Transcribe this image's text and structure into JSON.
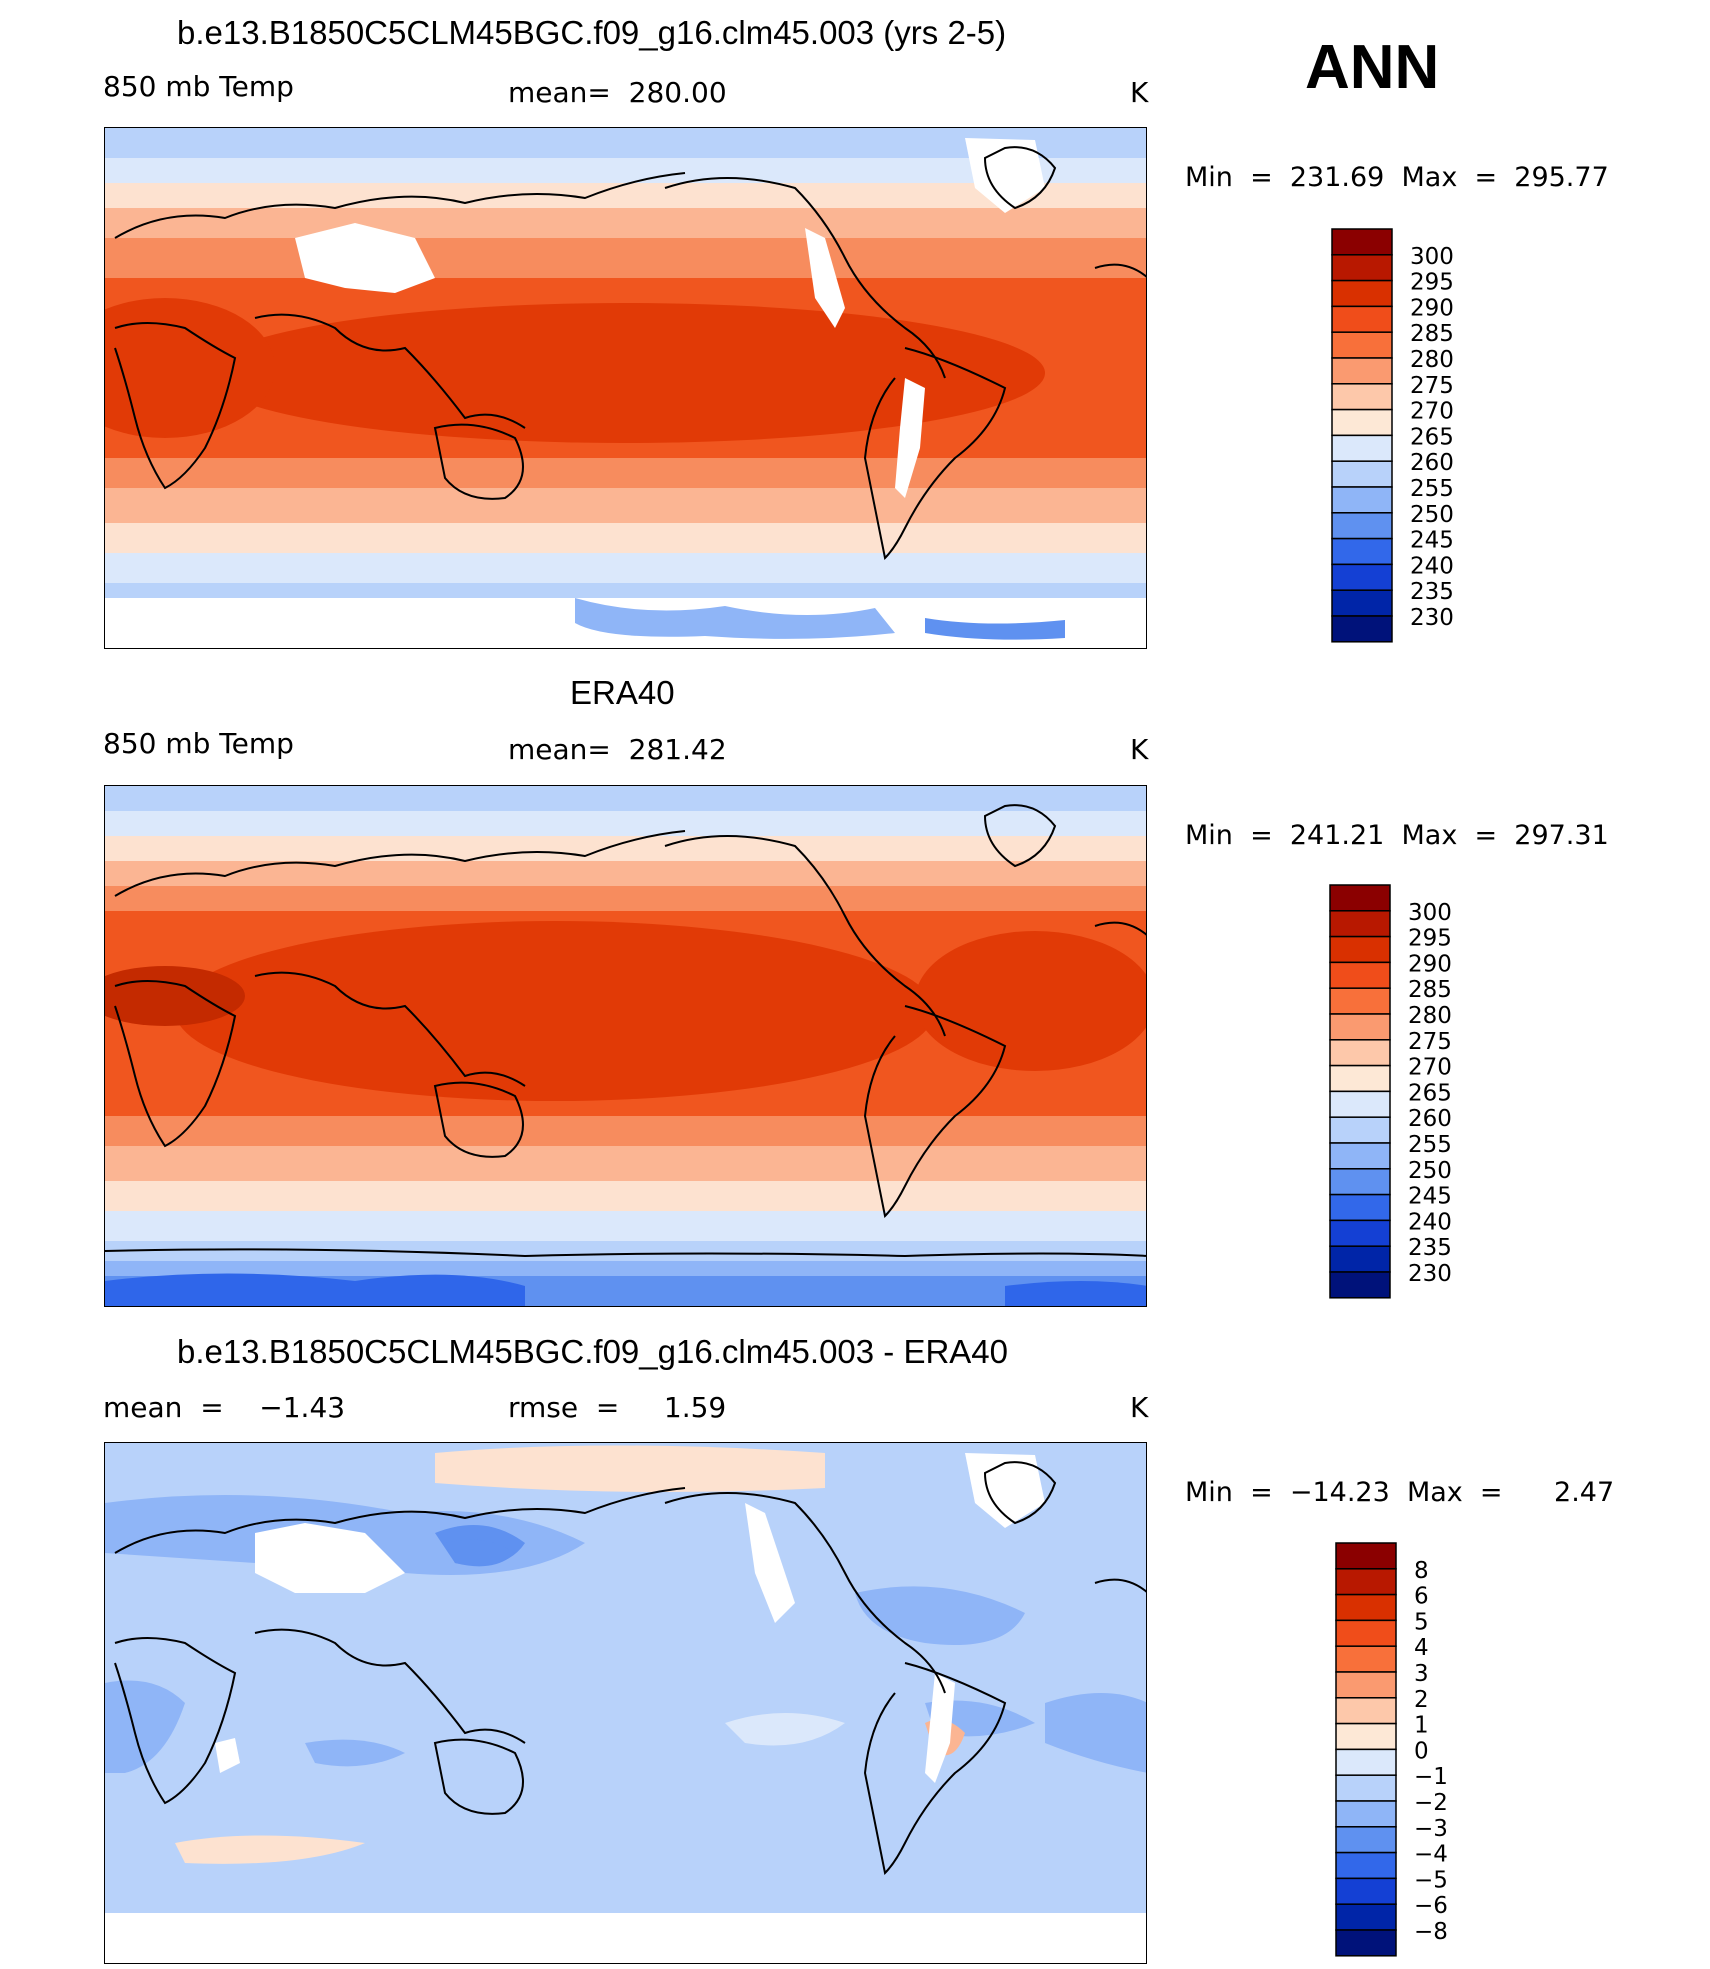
{
  "season": "ANN",
  "panels": [
    {
      "title": "b.e13.B1850C5CLM45BGC.f09_g16.clm45.003 (yrs 2-5)",
      "left_label": "850 mb Temp",
      "center_label": "mean=  280.00",
      "units": "K",
      "minmax": "Min  =  231.69  Max  =  295.77",
      "colorbar_labels": [
        "300",
        "295",
        "290",
        "285",
        "280",
        "275",
        "270",
        "265",
        "260",
        "255",
        "250",
        "245",
        "240",
        "235",
        "230"
      ]
    },
    {
      "title": "ERA40",
      "left_label": "850 mb Temp",
      "center_label": "mean=  281.42",
      "units": "K",
      "minmax": "Min  =  241.21  Max  =  297.31",
      "colorbar_labels": [
        "300",
        "295",
        "290",
        "285",
        "280",
        "275",
        "270",
        "265",
        "260",
        "255",
        "250",
        "245",
        "240",
        "235",
        "230"
      ]
    },
    {
      "title": "b.e13.B1850C5CLM45BGC.f09_g16.clm45.003 - ERA40",
      "left_label": "mean  =    −1.43",
      "center_label": "rmse  =     1.59",
      "units": "K",
      "minmax": "Min  =  −14.23  Max  =      2.47",
      "colorbar_labels": [
        "8",
        "6",
        "5",
        "4",
        "3",
        "2",
        "1",
        "0",
        "−1",
        "−2",
        "−3",
        "−4",
        "−5",
        "−6",
        "−8"
      ]
    }
  ],
  "colorbar_colors": [
    "#8b0000",
    "#b81800",
    "#d93000",
    "#f04d1a",
    "#f8703a",
    "#fa9a70",
    "#fdc8aa",
    "#fde8d6",
    "#dbe8fb",
    "#b8d2fa",
    "#8fb5f7",
    "#5f91f0",
    "#3268ea",
    "#1440d4",
    "#0025a8",
    "#00127a"
  ],
  "map_colors": {
    "deep_red": "#c42a00",
    "red": "#e13a06",
    "red_orange": "#f0561f",
    "orange": "#f78c5e",
    "salmon": "#fbb593",
    "peach": "#fde2d0",
    "pale_blue": "#dbe8fb",
    "light_blue": "#b8d2fa",
    "blue": "#8fb5f7",
    "mid_blue": "#5f91f0",
    "strong_blue": "#2f66ea",
    "missing": "#ffffff"
  }
}
